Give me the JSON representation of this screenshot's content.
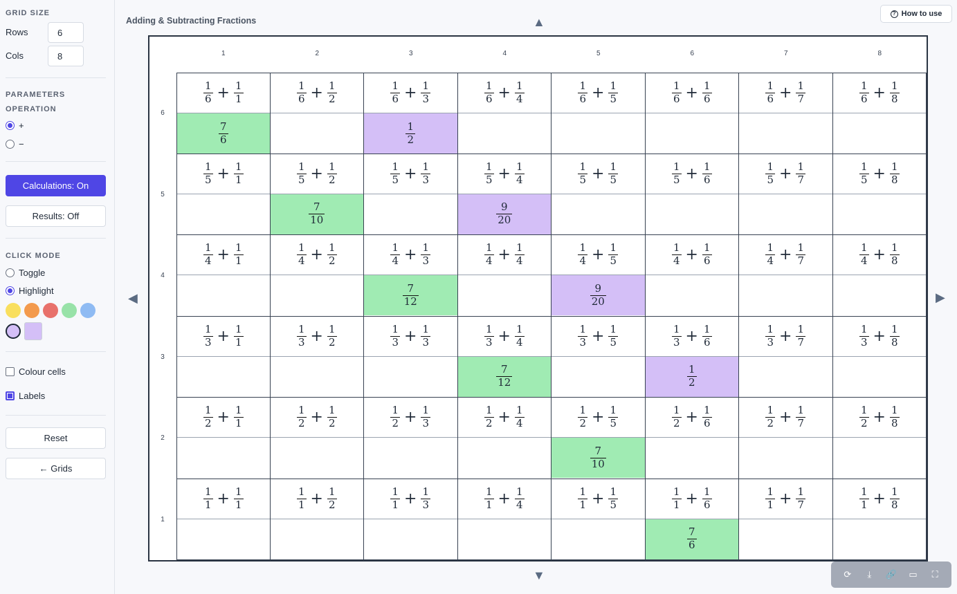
{
  "sidebar": {
    "grid_size_title": "GRID SIZE",
    "rows_label": "Rows",
    "rows_value": "6",
    "cols_label": "Cols",
    "cols_value": "8",
    "parameters_title": "PARAMETERS",
    "operation_title": "OPERATION",
    "op_plus": "+",
    "op_minus": "−",
    "calc_button": "Calculations: On",
    "results_button": "Results: Off",
    "click_mode_title": "CLICK MODE",
    "mode_toggle": "Toggle",
    "mode_highlight": "Highlight",
    "swatches": [
      "#f9df5e",
      "#f39a4d",
      "#e8716b",
      "#98e2a8",
      "#8fbbf3"
    ],
    "selected_swatch": "#d4bff7",
    "colour_cells_label": "Colour cells",
    "labels_label": "Labels",
    "reset_button": "Reset",
    "grids_button": "← Grids"
  },
  "main": {
    "title": "Adding & Subtracting Fractions",
    "how_to_use": "How to use",
    "arrow_up": "▲",
    "arrow_down": "▼",
    "arrow_left": "◀",
    "arrow_right": "▶"
  },
  "grid": {
    "col_labels": [
      "1",
      "2",
      "3",
      "4",
      "5",
      "6",
      "7",
      "8"
    ],
    "row_labels": [
      "6",
      "5",
      "4",
      "3",
      "2",
      "1"
    ],
    "rows": [
      {
        "a": "6",
        "cells": [
          {
            "b": "1",
            "res": [
              "7",
              "6"
            ],
            "color": "green"
          },
          {
            "b": "2"
          },
          {
            "b": "3",
            "res": [
              "1",
              "2"
            ],
            "color": "purple"
          },
          {
            "b": "4"
          },
          {
            "b": "5"
          },
          {
            "b": "6"
          },
          {
            "b": "7"
          },
          {
            "b": "8"
          }
        ]
      },
      {
        "a": "5",
        "cells": [
          {
            "b": "1"
          },
          {
            "b": "2",
            "res": [
              "7",
              "10"
            ],
            "color": "green"
          },
          {
            "b": "3"
          },
          {
            "b": "4",
            "res": [
              "9",
              "20"
            ],
            "color": "purple"
          },
          {
            "b": "5"
          },
          {
            "b": "6"
          },
          {
            "b": "7"
          },
          {
            "b": "8"
          }
        ]
      },
      {
        "a": "4",
        "cells": [
          {
            "b": "1"
          },
          {
            "b": "2"
          },
          {
            "b": "3",
            "res": [
              "7",
              "12"
            ],
            "color": "green"
          },
          {
            "b": "4"
          },
          {
            "b": "5",
            "res": [
              "9",
              "20"
            ],
            "color": "purple"
          },
          {
            "b": "6"
          },
          {
            "b": "7"
          },
          {
            "b": "8"
          }
        ]
      },
      {
        "a": "3",
        "cells": [
          {
            "b": "1"
          },
          {
            "b": "2"
          },
          {
            "b": "3"
          },
          {
            "b": "4",
            "res": [
              "7",
              "12"
            ],
            "color": "green"
          },
          {
            "b": "5"
          },
          {
            "b": "6",
            "res": [
              "1",
              "2"
            ],
            "color": "purple"
          },
          {
            "b": "7"
          },
          {
            "b": "8"
          }
        ]
      },
      {
        "a": "2",
        "cells": [
          {
            "b": "1"
          },
          {
            "b": "2"
          },
          {
            "b": "3"
          },
          {
            "b": "4"
          },
          {
            "b": "5",
            "res": [
              "7",
              "10"
            ],
            "color": "green"
          },
          {
            "b": "6"
          },
          {
            "b": "7"
          },
          {
            "b": "8"
          }
        ]
      },
      {
        "a": "1",
        "cells": [
          {
            "b": "1"
          },
          {
            "b": "2"
          },
          {
            "b": "3"
          },
          {
            "b": "4"
          },
          {
            "b": "5"
          },
          {
            "b": "6",
            "res": [
              "7",
              "6"
            ],
            "color": "green"
          },
          {
            "b": "7"
          },
          {
            "b": "8"
          }
        ]
      }
    ]
  },
  "toolbar": {
    "icons": [
      "refresh-icon",
      "download-icon",
      "link-icon",
      "monitor-icon",
      "fullscreen-icon"
    ],
    "glyphs": [
      "⟳",
      "⤓",
      "🔗",
      "▭",
      "⛶"
    ]
  }
}
